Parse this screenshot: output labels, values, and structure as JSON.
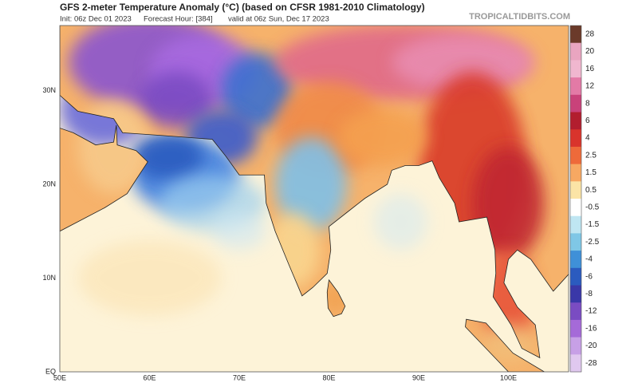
{
  "header": {
    "title": "GFS 2-meter Temperature Anomaly (°C) (based on CFSR 1981-2010 Climatology)",
    "subtitle": [
      "Init: 06z Dec 01 2023",
      "Forecast Hour: [384]",
      "valid at 06z Sun, Dec 17 2023"
    ],
    "source": "TROPICALTIDBITS.COM"
  },
  "map": {
    "lat_labels": [
      "30N",
      "20N",
      "10N",
      "EQ"
    ],
    "lon_labels": [
      "50E",
      "60E",
      "70E",
      "80E",
      "90E",
      "100E"
    ]
  },
  "colorbar": {
    "labels": [
      "28",
      "20",
      "16",
      "12",
      "8",
      "6",
      "4",
      "2.5",
      "1.5",
      "0.5",
      "-0.5",
      "-1.5",
      "-2.5",
      "-4",
      "-6",
      "-8",
      "-12",
      "-16",
      "-20",
      "-28"
    ]
  }
}
